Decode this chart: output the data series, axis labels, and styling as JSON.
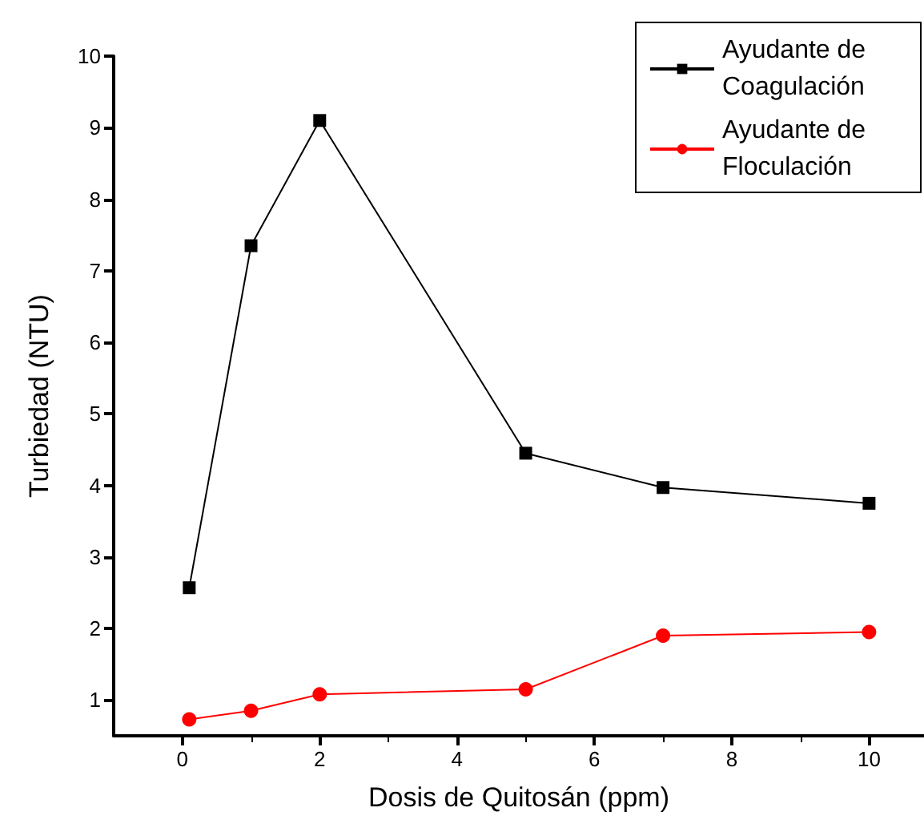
{
  "chart_data": {
    "type": "line",
    "xlabel": "Dosis de Quitosán (ppm)",
    "ylabel": "Turbiedad (NTU)",
    "xlim": [
      -1,
      10.8
    ],
    "xticks": [
      0,
      2,
      4,
      6,
      8,
      10
    ],
    "ylim": [
      0.5,
      10
    ],
    "yticks": [
      1,
      2,
      3,
      4,
      5,
      6,
      7,
      8,
      9,
      10
    ],
    "legend": "top right",
    "grid": false,
    "series": [
      {
        "name": "Ayudante de Coagulación",
        "color": "#000000",
        "marker": "square",
        "x": [
          0.1,
          1,
          2,
          5,
          7,
          10
        ],
        "values": [
          2.57,
          7.35,
          9.1,
          4.45,
          3.97,
          3.75
        ]
      },
      {
        "name": "Ayudante de Floculación",
        "color": "#ff0000",
        "marker": "circle",
        "x": [
          0.1,
          1,
          2,
          5,
          7,
          10
        ],
        "values": [
          0.73,
          0.85,
          1.08,
          1.15,
          1.9,
          1.95
        ]
      }
    ]
  }
}
